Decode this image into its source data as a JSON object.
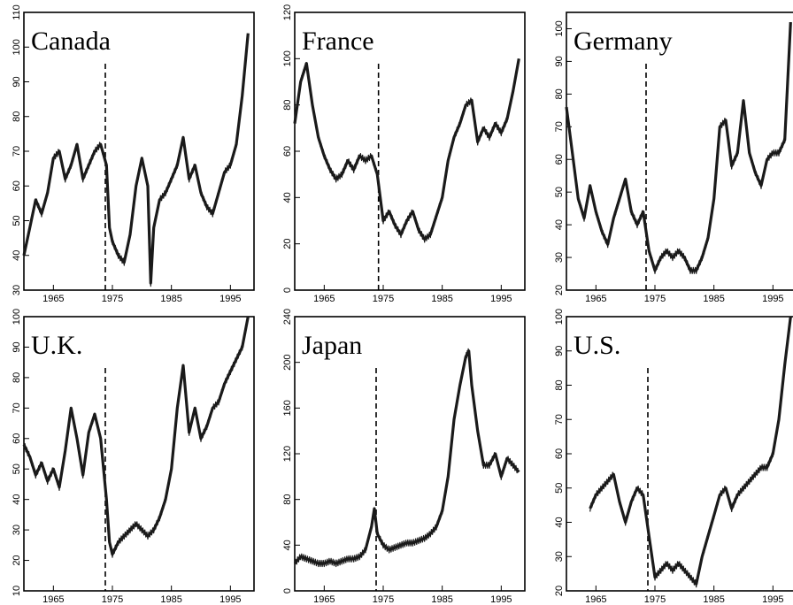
{
  "chart_data": [
    {
      "type": "line",
      "title": "Canada",
      "ylim": [
        30,
        110
      ],
      "yticks": [
        30,
        40,
        50,
        60,
        70,
        80,
        90,
        100,
        110
      ],
      "xlim": [
        1960,
        1999
      ],
      "xticks": [
        1965,
        1975,
        1985,
        1995
      ],
      "vline_x": 1973.8,
      "series": [
        {
          "x": [
            1960,
            1961,
            1962,
            1963,
            1964,
            1965,
            1966,
            1967,
            1968,
            1969,
            1970,
            1971,
            1972,
            1973,
            1974,
            1974.5,
            1975,
            1976,
            1977,
            1978,
            1979,
            1980,
            1981,
            1981.5,
            1982,
            1983,
            1984,
            1985,
            1986,
            1987,
            1988,
            1989,
            1990,
            1991,
            1992,
            1993,
            1994,
            1995,
            1996,
            1997,
            1998
          ],
          "values": [
            40,
            48,
            56,
            52,
            58,
            68,
            70,
            62,
            66,
            72,
            62,
            66,
            70,
            72,
            66,
            48,
            44,
            40,
            38,
            46,
            60,
            68,
            60,
            32,
            48,
            56,
            58,
            62,
            66,
            74,
            62,
            66,
            58,
            54,
            52,
            58,
            64,
            66,
            72,
            86,
            104
          ]
        }
      ]
    },
    {
      "type": "line",
      "title": "France",
      "ylim": [
        0,
        120
      ],
      "yticks": [
        0,
        20,
        40,
        60,
        80,
        100,
        120
      ],
      "xlim": [
        1960,
        1999
      ],
      "xticks": [
        1965,
        1975,
        1985,
        1995
      ],
      "vline_x": 1974.2,
      "series": [
        {
          "x": [
            1960,
            1961,
            1962,
            1963,
            1964,
            1965,
            1966,
            1967,
            1968,
            1969,
            1970,
            1971,
            1972,
            1973,
            1974,
            1975,
            1976,
            1977,
            1978,
            1979,
            1980,
            1981,
            1982,
            1983,
            1984,
            1985,
            1986,
            1987,
            1988,
            1989,
            1990,
            1991,
            1992,
            1993,
            1994,
            1995,
            1996,
            1997,
            1998
          ],
          "values": [
            72,
            90,
            98,
            80,
            66,
            58,
            52,
            48,
            50,
            56,
            52,
            58,
            56,
            58,
            50,
            30,
            34,
            28,
            24,
            30,
            34,
            26,
            22,
            24,
            32,
            40,
            56,
            66,
            72,
            80,
            82,
            64,
            70,
            66,
            72,
            68,
            74,
            86,
            100
          ]
        }
      ]
    },
    {
      "type": "line",
      "title": "Germany",
      "ylim": [
        20,
        105
      ],
      "yticks": [
        20,
        30,
        40,
        50,
        60,
        70,
        80,
        90,
        100
      ],
      "xlim": [
        1960,
        1999
      ],
      "xticks": [
        1965,
        1975,
        1985,
        1995
      ],
      "vline_x": 1973.5,
      "series": [
        {
          "x": [
            1960,
            1961,
            1962,
            1963,
            1964,
            1965,
            1966,
            1967,
            1968,
            1969,
            1970,
            1971,
            1972,
            1973,
            1974,
            1975,
            1976,
            1977,
            1978,
            1979,
            1980,
            1981,
            1982,
            1983,
            1984,
            1985,
            1986,
            1987,
            1988,
            1989,
            1990,
            1991,
            1992,
            1993,
            1994,
            1995,
            1996,
            1997,
            1998
          ],
          "values": [
            76,
            62,
            48,
            42,
            52,
            44,
            38,
            34,
            42,
            48,
            54,
            44,
            40,
            44,
            32,
            26,
            30,
            32,
            30,
            32,
            30,
            26,
            26,
            30,
            36,
            48,
            70,
            72,
            58,
            62,
            78,
            62,
            56,
            52,
            60,
            62,
            62,
            66,
            102
          ]
        }
      ]
    },
    {
      "type": "line",
      "title": "U.K.",
      "ylim": [
        10,
        100
      ],
      "yticks": [
        10,
        20,
        30,
        40,
        50,
        60,
        70,
        80,
        90,
        100
      ],
      "xlim": [
        1960,
        1999
      ],
      "xticks": [
        1965,
        1975,
        1985,
        1995
      ],
      "vline_x": 1973.8,
      "series": [
        {
          "x": [
            1960,
            1961,
            1962,
            1963,
            1964,
            1965,
            1966,
            1967,
            1968,
            1969,
            1970,
            1971,
            1972,
            1973,
            1974,
            1974.5,
            1975,
            1976,
            1977,
            1978,
            1979,
            1980,
            1981,
            1982,
            1983,
            1984,
            1985,
            1986,
            1987,
            1988,
            1989,
            1990,
            1991,
            1992,
            1993,
            1994,
            1995,
            1996,
            1997,
            1998
          ],
          "values": [
            58,
            54,
            48,
            52,
            46,
            50,
            44,
            56,
            70,
            60,
            48,
            62,
            68,
            60,
            40,
            26,
            22,
            26,
            28,
            30,
            32,
            30,
            28,
            30,
            34,
            40,
            50,
            70,
            84,
            62,
            70,
            60,
            64,
            70,
            72,
            78,
            82,
            86,
            90,
            100
          ]
        }
      ]
    },
    {
      "type": "line",
      "title": "Japan",
      "ylim": [
        0,
        240
      ],
      "yticks": [
        0,
        40,
        80,
        120,
        160,
        200,
        240
      ],
      "xlim": [
        1960,
        1999
      ],
      "xticks": [
        1965,
        1975,
        1985,
        1995
      ],
      "vline_x": 1973.8,
      "series": [
        {
          "x": [
            1960,
            1961,
            1962,
            1963,
            1964,
            1965,
            1966,
            1967,
            1968,
            1969,
            1970,
            1971,
            1972,
            1973,
            1973.5,
            1974,
            1975,
            1976,
            1977,
            1978,
            1979,
            1980,
            1981,
            1982,
            1983,
            1984,
            1985,
            1986,
            1987,
            1988,
            1989,
            1989.5,
            1990,
            1991,
            1992,
            1993,
            1994,
            1995,
            1996,
            1997,
            1998
          ],
          "values": [
            24,
            30,
            28,
            26,
            24,
            24,
            26,
            24,
            26,
            28,
            28,
            30,
            36,
            56,
            72,
            50,
            40,
            36,
            38,
            40,
            42,
            42,
            44,
            46,
            50,
            56,
            70,
            100,
            150,
            180,
            205,
            210,
            180,
            140,
            110,
            110,
            120,
            100,
            116,
            110,
            104
          ]
        }
      ]
    },
    {
      "type": "line",
      "title": "U.S.",
      "ylim": [
        20,
        100
      ],
      "yticks": [
        20,
        30,
        40,
        50,
        60,
        70,
        80,
        90,
        100
      ],
      "xlim": [
        1960,
        1999
      ],
      "xticks": [
        1965,
        1975,
        1985,
        1995
      ],
      "vline_x": 1973.8,
      "series": [
        {
          "x": [
            1964,
            1965,
            1966,
            1967,
            1968,
            1969,
            1970,
            1971,
            1972,
            1973,
            1974,
            1975,
            1976,
            1977,
            1978,
            1979,
            1980,
            1981,
            1982,
            1983,
            1984,
            1985,
            1986,
            1987,
            1988,
            1989,
            1990,
            1991,
            1992,
            1993,
            1994,
            1995,
            1996,
            1997,
            1998
          ],
          "values": [
            44,
            48,
            50,
            52,
            54,
            46,
            40,
            46,
            50,
            48,
            36,
            24,
            26,
            28,
            26,
            28,
            26,
            24,
            22,
            30,
            36,
            42,
            48,
            50,
            44,
            48,
            50,
            52,
            54,
            56,
            56,
            60,
            70,
            86,
            100
          ]
        }
      ]
    }
  ]
}
